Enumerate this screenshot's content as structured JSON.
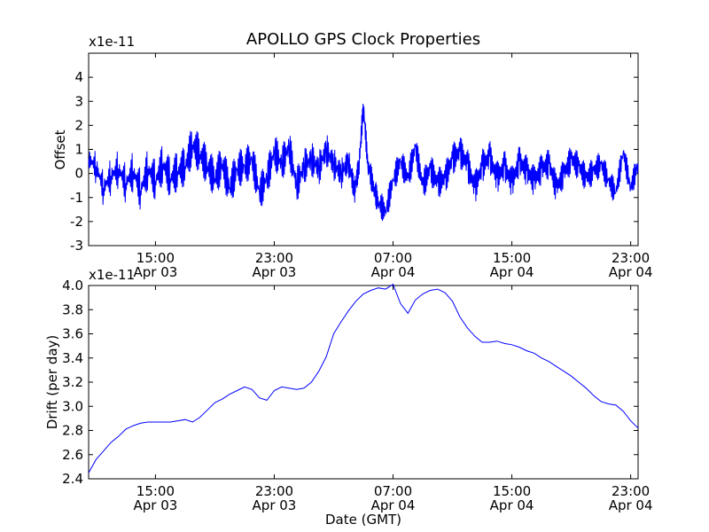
{
  "chart_data": [
    {
      "type": "line",
      "title": "APOLLO GPS Clock Properties",
      "xlabel": "",
      "ylabel": "Offset",
      "y_multiplier": "x1e-11",
      "ylim": [
        -3,
        5
      ],
      "yticks": [
        "-3",
        "-2",
        "-1",
        "0",
        "1",
        "2",
        "3",
        "4"
      ],
      "xlim": [
        10.5,
        47.5
      ],
      "xticks": [
        {
          "x": 15,
          "line1": "15:00",
          "line2": "Apr 03"
        },
        {
          "x": 23,
          "line1": "23:00",
          "line2": "Apr 03"
        },
        {
          "x": 31,
          "line1": "07:00",
          "line2": "Apr 04"
        },
        {
          "x": 39,
          "line1": "15:00",
          "line2": "Apr 04"
        },
        {
          "x": 47,
          "line1": "23:00",
          "line2": "Apr 04"
        }
      ],
      "line_color": "#0000ff",
      "grid": false,
      "series": [
        {
          "x": [
            10.5,
            11.0,
            11.5,
            12.0,
            12.5,
            13.0,
            13.5,
            14.0,
            14.5,
            15.0,
            15.5,
            16.0,
            16.5,
            17.0,
            17.5,
            18.0,
            18.5,
            19.0,
            19.5,
            20.0,
            20.5,
            21.0,
            21.5,
            22.0,
            22.5,
            23.0,
            23.5,
            24.0,
            24.5,
            25.0,
            25.5,
            26.0,
            26.5,
            27.0,
            27.5,
            28.0,
            28.4,
            28.7,
            29.0,
            29.3,
            29.7,
            30.0,
            30.5,
            31.0,
            31.5,
            32.0,
            32.5,
            33.0,
            33.5,
            34.0,
            34.5,
            35.0,
            35.5,
            36.0,
            36.5,
            37.0,
            37.5,
            38.0,
            38.5,
            39.0,
            39.5,
            40.0,
            40.5,
            41.0,
            41.5,
            42.0,
            42.5,
            43.0,
            43.5,
            44.0,
            44.5,
            45.0,
            45.5,
            46.0,
            46.5,
            47.0,
            47.5
          ],
          "y": [
            0.6,
            0.3,
            -0.6,
            -0.1,
            0.2,
            -0.4,
            0.1,
            -0.7,
            0.2,
            -0.3,
            0.4,
            -0.2,
            0.1,
            0.3,
            1.2,
            0.8,
            0.3,
            -0.2,
            0.4,
            -0.6,
            0.2,
            0.3,
            0.6,
            -0.8,
            -0.2,
            0.9,
            0.4,
            1.1,
            -0.5,
            0.3,
            0.6,
            0.2,
            1.0,
            0.4,
            0.0,
            0.5,
            -0.7,
            0.3,
            2.8,
            0.4,
            -0.6,
            -1.2,
            -1.6,
            -0.3,
            0.5,
            -0.2,
            1.1,
            -0.5,
            0.2,
            -0.4,
            -0.2,
            0.6,
            0.9,
            0.4,
            -0.6,
            0.3,
            0.7,
            -0.2,
            0.3,
            -0.4,
            0.5,
            0.1,
            -0.3,
            0.2,
            0.4,
            -0.6,
            0.0,
            0.6,
            0.3,
            -0.2,
            0.1,
            0.4,
            -0.3,
            -0.8,
            0.9,
            -0.6,
            0.4
          ]
        }
      ]
    },
    {
      "type": "line",
      "title": "",
      "xlabel": "Date (GMT)",
      "ylabel": "Drift (per day)",
      "y_multiplier": "x1e-11",
      "ylim": [
        2.4,
        4.0
      ],
      "yticks": [
        "2.4",
        "2.6",
        "2.8",
        "3.0",
        "3.2",
        "3.4",
        "3.6",
        "3.8",
        "4.0"
      ],
      "xlim": [
        10.5,
        47.5
      ],
      "xticks": [
        {
          "x": 15,
          "line1": "15:00",
          "line2": "Apr 03"
        },
        {
          "x": 23,
          "line1": "23:00",
          "line2": "Apr 03"
        },
        {
          "x": 31,
          "line1": "07:00",
          "line2": "Apr 04"
        },
        {
          "x": 39,
          "line1": "15:00",
          "line2": "Apr 04"
        },
        {
          "x": 47,
          "line1": "23:00",
          "line2": "Apr 04"
        }
      ],
      "line_color": "#0000ff",
      "grid": false,
      "series": [
        {
          "x": [
            10.5,
            11.0,
            11.5,
            12.0,
            12.5,
            13.0,
            13.5,
            14.0,
            14.5,
            15.0,
            15.5,
            16.0,
            16.5,
            17.0,
            17.5,
            18.0,
            18.5,
            19.0,
            19.5,
            20.0,
            20.5,
            21.0,
            21.5,
            22.0,
            22.5,
            23.0,
            23.5,
            24.0,
            24.5,
            25.0,
            25.5,
            26.0,
            26.5,
            27.0,
            27.5,
            28.0,
            28.5,
            29.0,
            29.5,
            30.0,
            30.5,
            31.0,
            31.5,
            32.0,
            32.5,
            33.0,
            33.5,
            34.0,
            34.5,
            35.0,
            35.5,
            36.0,
            36.5,
            37.0,
            37.5,
            38.0,
            38.5,
            39.0,
            39.5,
            40.0,
            40.5,
            41.0,
            41.5,
            42.0,
            42.5,
            43.0,
            43.5,
            44.0,
            44.5,
            45.0,
            45.5,
            46.0,
            46.5,
            47.0,
            47.5
          ],
          "y": [
            2.45,
            2.56,
            2.63,
            2.7,
            2.75,
            2.81,
            2.84,
            2.86,
            2.87,
            2.87,
            2.87,
            2.87,
            2.88,
            2.89,
            2.87,
            2.91,
            2.97,
            3.03,
            3.06,
            3.1,
            3.13,
            3.16,
            3.14,
            3.07,
            3.05,
            3.13,
            3.16,
            3.15,
            3.14,
            3.15,
            3.2,
            3.29,
            3.41,
            3.6,
            3.7,
            3.79,
            3.87,
            3.93,
            3.96,
            3.98,
            3.97,
            4.01,
            3.85,
            3.77,
            3.88,
            3.93,
            3.96,
            3.97,
            3.94,
            3.87,
            3.74,
            3.65,
            3.58,
            3.53,
            3.53,
            3.54,
            3.52,
            3.51,
            3.49,
            3.46,
            3.44,
            3.4,
            3.37,
            3.33,
            3.29,
            3.25,
            3.2,
            3.15,
            3.09,
            3.04,
            3.02,
            3.01,
            2.96,
            2.88,
            2.82
          ]
        }
      ]
    }
  ]
}
